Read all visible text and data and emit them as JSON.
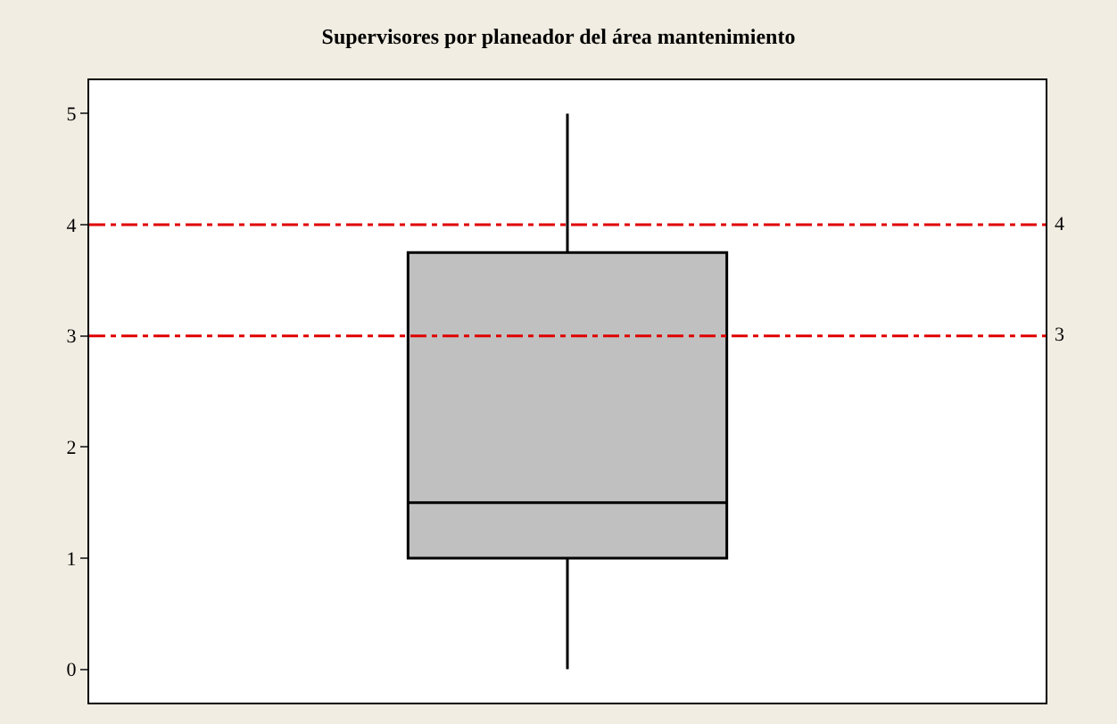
{
  "chart_data": {
    "type": "box",
    "title": "Supervisores por planeador del área mantenimiento",
    "categories": [
      null
    ],
    "boxes": [
      {
        "low": 0,
        "q1": 1,
        "median": 1.5,
        "q3": 3.75,
        "high": 5
      }
    ],
    "color": "#c0c0c0",
    "ylim": [
      -0.3,
      5.3
    ],
    "yticks": [
      0,
      1,
      2,
      3,
      4,
      5
    ],
    "ref_lines": [
      {
        "axis": "y",
        "value": 4,
        "label": "4",
        "color": "#e00000",
        "line_style": "dashdot"
      },
      {
        "axis": "y",
        "value": 3,
        "label": "3",
        "color": "#e00000",
        "line_style": "dashdot"
      }
    ],
    "legend": false
  }
}
